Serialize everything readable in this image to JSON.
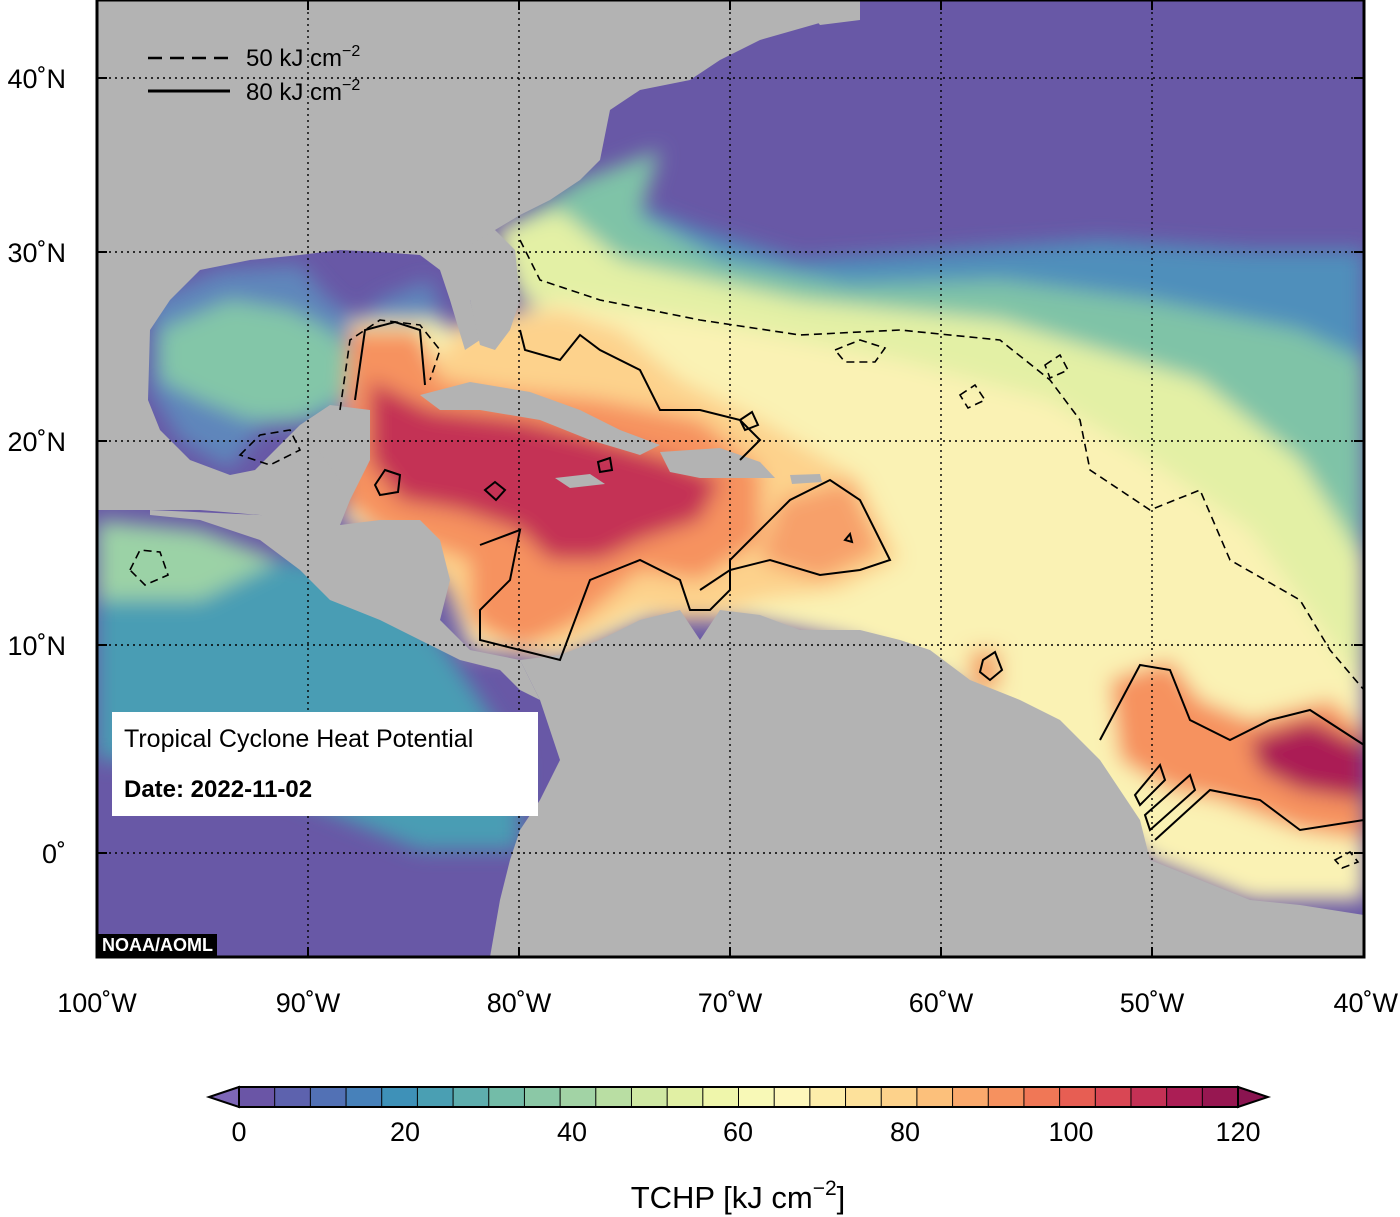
{
  "map": {
    "title": "Tropical Cyclone Heat Potential",
    "date_label": "Date: 2022-11-02",
    "credit": "NOAA/AOML",
    "lon_ticks": [
      "100˚W",
      "90˚W",
      "80˚W",
      "70˚W",
      "60˚W",
      "50˚W",
      "40˚W"
    ],
    "lat_ticks": [
      "40˚N",
      "30˚N",
      "20˚N",
      "10˚N",
      "0˚"
    ],
    "lon_range": [
      -100,
      -40
    ],
    "lat_range": [
      -5,
      45
    ],
    "land_color": "#b3b3b3",
    "grid": "dotted",
    "contour_legend": [
      {
        "style": "dashed",
        "value": "50",
        "unit": "kJ cm",
        "exp": "−2"
      },
      {
        "style": "solid",
        "value": "80",
        "unit": "kJ cm",
        "exp": "−2"
      }
    ]
  },
  "colorbar": {
    "min": 0,
    "max": 120,
    "step": 5,
    "tick_labels": [
      "0",
      "20",
      "40",
      "60",
      "80",
      "100",
      "120"
    ],
    "label_base": "TCHP [kJ cm",
    "label_exp": "−2",
    "label_end": "]",
    "colors": [
      "#6a55a6",
      "#5d62ae",
      "#5271b5",
      "#4781ba",
      "#3e91b8",
      "#4a9fb3",
      "#5eaeae",
      "#73bca8",
      "#8bc8a6",
      "#a2d3a5",
      "#b9dea3",
      "#cfe8a3",
      "#e1f0a4",
      "#eff6ab",
      "#f8f9b7",
      "#fdf7bb",
      "#fdedaa",
      "#fde19b",
      "#fdd28b",
      "#fcc07b",
      "#faa96c",
      "#f6915f",
      "#f07756",
      "#e75e53",
      "#d94754",
      "#c43155",
      "#ab1e55",
      "#971751"
    ],
    "under_color": "#7d66b6",
    "over_color": "#8a1450"
  }
}
